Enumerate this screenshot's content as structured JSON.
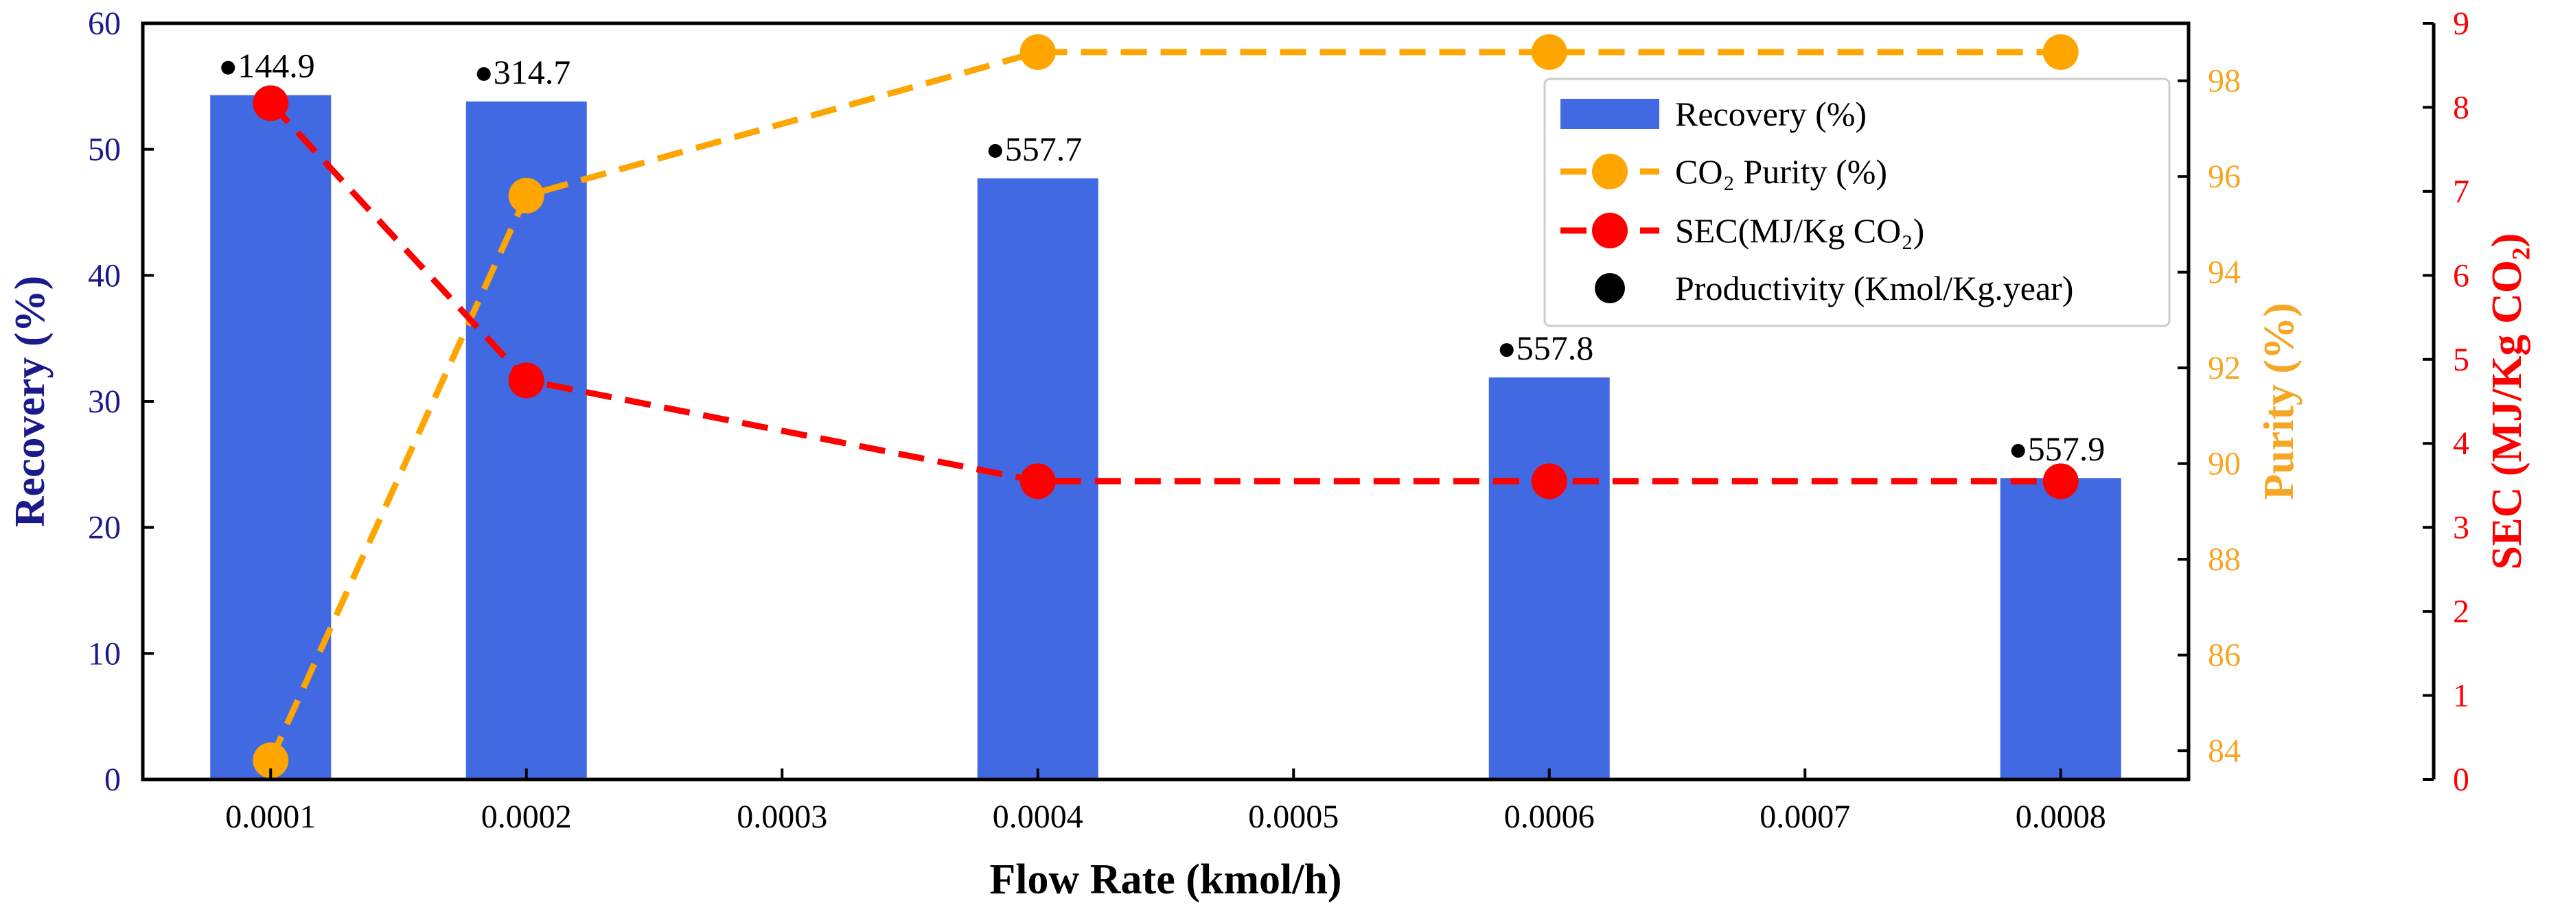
{
  "chart_data": {
    "type": "bar",
    "x": [
      0.0001,
      0.0002,
      0.0004,
      0.0006,
      0.0008
    ],
    "xlabel": "Flow Rate (kmol/h)",
    "xlim": [
      5e-05,
      0.00085
    ],
    "xticks": [
      "0.0001",
      "0.0002",
      "0.0003",
      "0.0004",
      "0.0005",
      "0.0006",
      "0.0007",
      "0.0008"
    ],
    "xtick_values": [
      0.0001,
      0.0002,
      0.0003,
      0.0004,
      0.0005,
      0.0006,
      0.0007,
      0.0008
    ],
    "axes": {
      "left": {
        "label": "Recovery (%)",
        "ylim": [
          0,
          60
        ],
        "ticks": [
          0,
          10,
          20,
          30,
          40,
          50,
          60
        ],
        "color": "#1a1a8c"
      },
      "right1": {
        "label": "Purity (%)",
        "ylim": [
          83.4,
          99.2
        ],
        "ticks": [
          84,
          86,
          88,
          90,
          92,
          94,
          96,
          98
        ],
        "color": "#f5a623"
      },
      "right2": {
        "label": "SEC (MJ/Kg CO₂)",
        "ylim": [
          0,
          9
        ],
        "ticks": [
          0,
          1,
          2,
          3,
          4,
          5,
          6,
          7,
          8,
          9
        ],
        "color": "#ff0000"
      }
    },
    "series": [
      {
        "name": "Recovery (%)",
        "type": "bar",
        "axis": "left",
        "color": "#4169e1",
        "values": [
          54.3,
          53.8,
          47.7,
          31.9,
          23.9
        ]
      },
      {
        "name": "CO₂ Purity (%)",
        "type": "line",
        "axis": "right1",
        "color": "#ffa500",
        "x": [
          0.0001,
          0.0002,
          0.0004,
          0.0006,
          0.0008
        ],
        "values": [
          83.8,
          95.6,
          98.6,
          98.6,
          98.6
        ]
      },
      {
        "name": "SEC(MJ/Kg CO₂)",
        "type": "line",
        "axis": "right2",
        "color": "#ff0000",
        "x": [
          0.0001,
          0.0002,
          0.0004,
          0.0006,
          0.0008
        ],
        "values": [
          8.05,
          4.75,
          3.55,
          3.55,
          3.55
        ]
      },
      {
        "name": "Productivity (Kmol/Kg.year)",
        "type": "annotation",
        "color": "#000000",
        "values": [
          144.9,
          314.7,
          557.7,
          557.8,
          557.9
        ],
        "labels": [
          "144.9",
          "314.7",
          "557.7",
          "557.8",
          "557.9"
        ]
      }
    ],
    "legend": {
      "placement": "top-right",
      "entries": [
        "Recovery (%)",
        "CO₂ Purity (%)",
        "SEC(MJ/Kg CO₂)",
        "Productivity (Kmol/Kg.year)"
      ]
    }
  }
}
